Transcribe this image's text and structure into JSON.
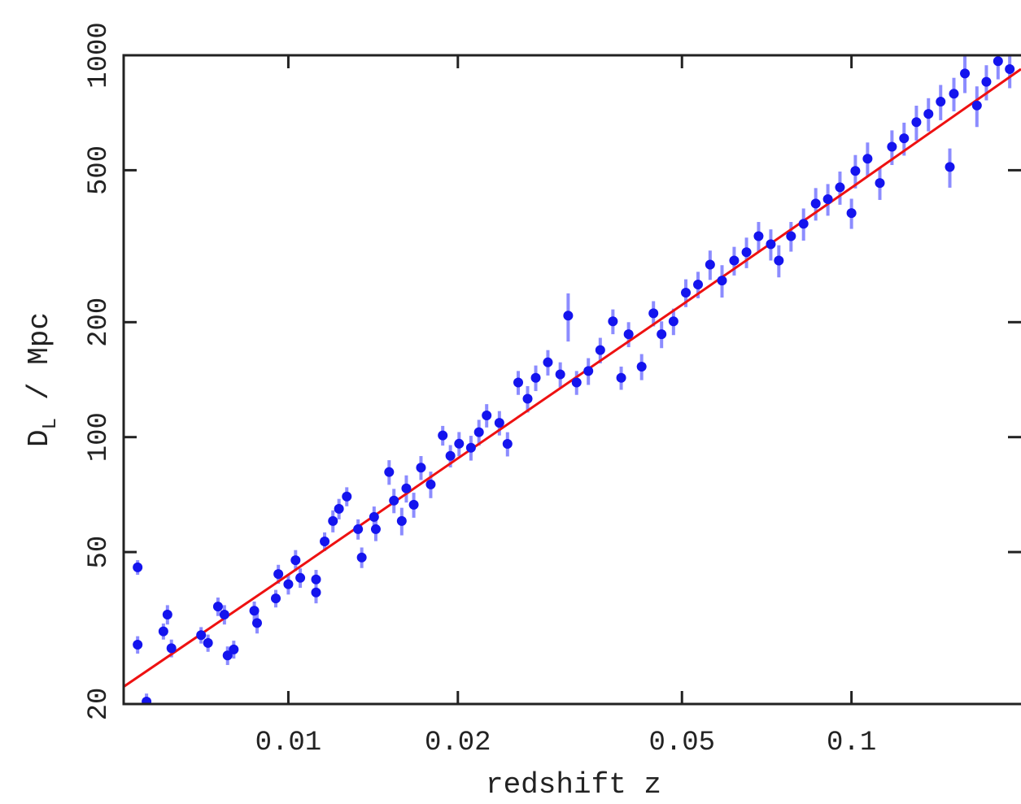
{
  "chart_data": {
    "type": "scatter",
    "xlabel": "redshift z",
    "ylabel": "D",
    "ylabel_sub": "L",
    "ylabel_unit": "/ Mpc",
    "xscale": "log",
    "yscale": "log",
    "xlim": [
      0.0051,
      0.2
    ],
    "ylim": [
      20,
      1000
    ],
    "xticks": [
      0.01,
      0.02,
      0.05,
      0.1
    ],
    "yticks": [
      20,
      50,
      100,
      200,
      500,
      1000
    ],
    "points": {
      "color": "#1414ee",
      "error_color": "#8c8cff",
      "x": [
        0.0054,
        0.0054,
        0.0056,
        0.006,
        0.0061,
        0.0062,
        0.007,
        0.0072,
        0.0075,
        0.0077,
        0.0078,
        0.008,
        0.0087,
        0.0088,
        0.0095,
        0.0096,
        0.01,
        0.0103,
        0.0105,
        0.0112,
        0.0112,
        0.0116,
        0.012,
        0.0123,
        0.0127,
        0.0135,
        0.0133,
        0.0142,
        0.0143,
        0.0151,
        0.0154,
        0.0159,
        0.0162,
        0.0167,
        0.0172,
        0.0179,
        0.0188,
        0.0194,
        0.0201,
        0.0211,
        0.0218,
        0.0225,
        0.0237,
        0.0245,
        0.0256,
        0.0266,
        0.0275,
        0.0289,
        0.0304,
        0.0314,
        0.0325,
        0.0341,
        0.0358,
        0.0377,
        0.039,
        0.0402,
        0.0424,
        0.0445,
        0.046,
        0.0483,
        0.0508,
        0.0534,
        0.0561,
        0.0589,
        0.0619,
        0.0651,
        0.0684,
        0.0719,
        0.0743,
        0.0781,
        0.0822,
        0.0864,
        0.0908,
        0.0954,
        0.1,
        0.1016,
        0.1068,
        0.1123,
        0.118,
        0.124,
        0.1304,
        0.137,
        0.144,
        0.152,
        0.1495,
        0.159,
        0.167,
        0.1736,
        0.1821,
        0.191
      ],
      "y": [
        45.6,
        28.6,
        20.3,
        31,
        34.3,
        28,
        30.3,
        28.9,
        36,
        34.3,
        26.8,
        27.8,
        35.1,
        32.6,
        37.8,
        43.8,
        41.2,
        47.6,
        42.8,
        42.4,
        39.2,
        53.3,
        60.3,
        64.9,
        69.9,
        48.4,
        57.4,
        61.8,
        57.4,
        81,
        68.2,
        60.3,
        73.4,
        66.5,
        83.2,
        75.2,
        101,
        89.3,
        96.1,
        93.8,
        103,
        114,
        109,
        96,
        139,
        126,
        143,
        157,
        146,
        208,
        139,
        149,
        169,
        201,
        143,
        186,
        153,
        211,
        186,
        201,
        239,
        251,
        283,
        257,
        290,
        305,
        336,
        320,
        290,
        336,
        362,
        409,
        420,
        451,
        386,
        498,
        536,
        463,
        576,
        606,
        668,
        702,
        756,
        793,
        510,
        896,
        739,
        852,
        965,
        920
      ],
      "errors": [
        2,
        1.5,
        1,
        1.5,
        2,
        1.5,
        1.5,
        1.5,
        2,
        2,
        1.5,
        1.5,
        2,
        2,
        2,
        2.5,
        2.5,
        3,
        2.5,
        2.5,
        2.5,
        3,
        4,
        4,
        4,
        3,
        3.5,
        4,
        4,
        6,
        5,
        5,
        6,
        5,
        6,
        6,
        6,
        6,
        7,
        7,
        8,
        8,
        8,
        7,
        10,
        10,
        11,
        12,
        11,
        30,
        10,
        12,
        13,
        15,
        10,
        14,
        12,
        16,
        15,
        16,
        20,
        20,
        25,
        25,
        25,
        28,
        30,
        30,
        28,
        30,
        35,
        40,
        40,
        45,
        35,
        50,
        55,
        45,
        60,
        60,
        70,
        70,
        80,
        80,
        60,
        100,
        90,
        90,
        100,
        100
      ]
    },
    "fit": {
      "color": "#ee1111",
      "x": [
        0.0051,
        0.01,
        0.02,
        0.05,
        0.1,
        0.2
      ],
      "y": [
        22.2,
        43.6,
        88,
        222,
        450,
        920
      ]
    }
  }
}
